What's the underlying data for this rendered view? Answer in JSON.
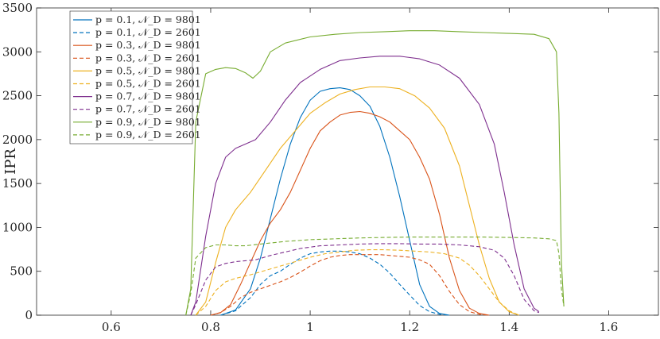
{
  "chart_data": {
    "type": "line",
    "title": "",
    "xlabel": "",
    "ylabel": "IPR",
    "xlim": [
      0.45,
      1.7
    ],
    "ylim": [
      0,
      3500
    ],
    "xticks": [
      "0.6",
      "0.8",
      "1",
      "1.2",
      "1.4",
      "1.6"
    ],
    "yticks": [
      "0",
      "500",
      "1000",
      "1500",
      "2000",
      "2500",
      "3000",
      "3500"
    ],
    "grid": false,
    "legend_position": "top-left",
    "colors": {
      "p01": "#0072BD",
      "p03": "#D95319",
      "p05": "#EDB120",
      "p07": "#7E2F8E",
      "p09": "#77AC30"
    },
    "series": [
      {
        "name": "p = 0.1, 𝒩_D = 9801",
        "color": "#0072BD",
        "dash": "solid",
        "x": [
          0.82,
          0.85,
          0.88,
          0.9,
          0.92,
          0.94,
          0.96,
          0.98,
          1.0,
          1.02,
          1.04,
          1.06,
          1.08,
          1.1,
          1.12,
          1.14,
          1.16,
          1.18,
          1.2,
          1.22,
          1.24,
          1.26,
          1.28
        ],
        "y": [
          0,
          60,
          300,
          650,
          1100,
          1550,
          1950,
          2250,
          2450,
          2550,
          2580,
          2590,
          2570,
          2500,
          2380,
          2150,
          1800,
          1350,
          850,
          350,
          100,
          20,
          0
        ]
      },
      {
        "name": "p = 0.1, 𝒩_D = 2601",
        "color": "#0072BD",
        "dash": "dashed",
        "x": [
          0.82,
          0.85,
          0.88,
          0.9,
          0.92,
          0.94,
          0.96,
          0.98,
          1.0,
          1.02,
          1.04,
          1.06,
          1.08,
          1.1,
          1.12,
          1.14,
          1.16,
          1.18,
          1.2,
          1.22,
          1.24,
          1.26,
          1.28
        ],
        "y": [
          0,
          50,
          200,
          350,
          450,
          500,
          580,
          650,
          700,
          720,
          730,
          730,
          720,
          700,
          650,
          580,
          480,
          350,
          230,
          110,
          40,
          10,
          0
        ]
      },
      {
        "name": "p = 0.3, 𝒩_D = 9801",
        "color": "#D95319",
        "dash": "solid",
        "x": [
          0.8,
          0.82,
          0.84,
          0.86,
          0.88,
          0.9,
          0.92,
          0.94,
          0.96,
          0.98,
          1.0,
          1.02,
          1.04,
          1.06,
          1.08,
          1.1,
          1.12,
          1.14,
          1.16,
          1.18,
          1.2,
          1.22,
          1.24,
          1.26,
          1.28,
          1.3,
          1.32,
          1.34,
          1.36
        ],
        "y": [
          0,
          30,
          120,
          350,
          600,
          850,
          1050,
          1200,
          1400,
          1650,
          1900,
          2100,
          2200,
          2280,
          2310,
          2320,
          2300,
          2260,
          2200,
          2100,
          2000,
          1800,
          1550,
          1150,
          650,
          280,
          80,
          20,
          0
        ]
      },
      {
        "name": "p = 0.3, 𝒩_D = 2601",
        "color": "#D95319",
        "dash": "dashed",
        "x": [
          0.8,
          0.82,
          0.84,
          0.86,
          0.88,
          0.9,
          0.92,
          0.94,
          0.96,
          0.98,
          1.0,
          1.02,
          1.04,
          1.06,
          1.08,
          1.1,
          1.12,
          1.14,
          1.16,
          1.18,
          1.2,
          1.22,
          1.24,
          1.26,
          1.28,
          1.3,
          1.32,
          1.34,
          1.36
        ],
        "y": [
          0,
          30,
          100,
          200,
          260,
          300,
          340,
          380,
          430,
          490,
          560,
          620,
          660,
          680,
          690,
          690,
          690,
          690,
          680,
          670,
          660,
          630,
          580,
          450,
          270,
          120,
          40,
          10,
          0
        ]
      },
      {
        "name": "p = 0.5, 𝒩_D = 9801",
        "color": "#EDB120",
        "dash": "solid",
        "x": [
          0.77,
          0.79,
          0.81,
          0.83,
          0.85,
          0.88,
          0.91,
          0.94,
          0.97,
          1.0,
          1.03,
          1.06,
          1.09,
          1.12,
          1.15,
          1.18,
          1.21,
          1.24,
          1.27,
          1.3,
          1.32,
          1.34,
          1.36,
          1.38,
          1.4,
          1.42
        ],
        "y": [
          0,
          150,
          600,
          1000,
          1200,
          1400,
          1650,
          1900,
          2100,
          2300,
          2420,
          2520,
          2570,
          2600,
          2600,
          2580,
          2500,
          2360,
          2130,
          1700,
          1250,
          800,
          420,
          150,
          40,
          0
        ]
      },
      {
        "name": "p = 0.5, 𝒩_D = 2601",
        "color": "#EDB120",
        "dash": "dashed",
        "x": [
          0.77,
          0.79,
          0.81,
          0.83,
          0.85,
          0.88,
          0.91,
          0.94,
          0.97,
          1.0,
          1.03,
          1.06,
          1.09,
          1.12,
          1.15,
          1.18,
          1.21,
          1.24,
          1.27,
          1.3,
          1.32,
          1.34,
          1.36,
          1.38,
          1.4,
          1.42
        ],
        "y": [
          0,
          100,
          280,
          380,
          420,
          460,
          510,
          560,
          610,
          660,
          700,
          720,
          740,
          745,
          745,
          740,
          730,
          720,
          700,
          650,
          570,
          450,
          300,
          150,
          50,
          0
        ]
      },
      {
        "name": "p = 0.7, 𝒩_D = 9801",
        "color": "#7E2F8E",
        "dash": "solid",
        "x": [
          0.76,
          0.77,
          0.79,
          0.81,
          0.83,
          0.85,
          0.87,
          0.89,
          0.92,
          0.95,
          0.98,
          1.02,
          1.06,
          1.1,
          1.14,
          1.18,
          1.22,
          1.26,
          1.3,
          1.34,
          1.37,
          1.39,
          1.41,
          1.43,
          1.45,
          1.46
        ],
        "y": [
          0,
          150,
          900,
          1500,
          1800,
          1900,
          1950,
          2000,
          2200,
          2450,
          2650,
          2800,
          2900,
          2930,
          2950,
          2950,
          2920,
          2850,
          2700,
          2400,
          1950,
          1400,
          800,
          300,
          80,
          40
        ]
      },
      {
        "name": "p = 0.7, 𝒩_D = 2601",
        "color": "#7E2F8E",
        "dash": "dashed",
        "x": [
          0.76,
          0.77,
          0.79,
          0.81,
          0.83,
          0.85,
          0.87,
          0.89,
          0.92,
          0.95,
          0.98,
          1.02,
          1.06,
          1.1,
          1.14,
          1.18,
          1.22,
          1.26,
          1.3,
          1.34,
          1.37,
          1.39,
          1.41,
          1.43,
          1.45,
          1.46
        ],
        "y": [
          0,
          120,
          400,
          550,
          590,
          610,
          620,
          630,
          680,
          720,
          760,
          790,
          800,
          810,
          815,
          815,
          810,
          810,
          800,
          780,
          740,
          650,
          450,
          180,
          50,
          30
        ]
      },
      {
        "name": "p = 0.9, 𝒩_D = 9801",
        "color": "#77AC30",
        "dash": "solid",
        "x": [
          0.75,
          0.76,
          0.77,
          0.79,
          0.81,
          0.83,
          0.85,
          0.87,
          0.885,
          0.9,
          0.92,
          0.95,
          1.0,
          1.05,
          1.1,
          1.15,
          1.2,
          1.25,
          1.3,
          1.35,
          1.4,
          1.45,
          1.48,
          1.495,
          1.5,
          1.505,
          1.51
        ],
        "y": [
          0,
          300,
          2200,
          2750,
          2800,
          2820,
          2810,
          2760,
          2700,
          2780,
          3000,
          3100,
          3170,
          3200,
          3220,
          3230,
          3240,
          3240,
          3230,
          3220,
          3210,
          3200,
          3150,
          3000,
          2300,
          600,
          100
        ]
      },
      {
        "name": "p = 0.9, 𝒩_D = 2601",
        "color": "#77AC30",
        "dash": "dashed",
        "x": [
          0.75,
          0.76,
          0.77,
          0.79,
          0.81,
          0.83,
          0.85,
          0.87,
          0.9,
          0.95,
          1.0,
          1.05,
          1.1,
          1.15,
          1.2,
          1.25,
          1.3,
          1.35,
          1.4,
          1.45,
          1.48,
          1.495,
          1.5,
          1.505,
          1.51
        ],
        "y": [
          0,
          250,
          650,
          770,
          800,
          800,
          790,
          790,
          810,
          840,
          860,
          870,
          880,
          885,
          890,
          890,
          890,
          890,
          885,
          880,
          870,
          850,
          700,
          300,
          100
        ]
      }
    ]
  }
}
